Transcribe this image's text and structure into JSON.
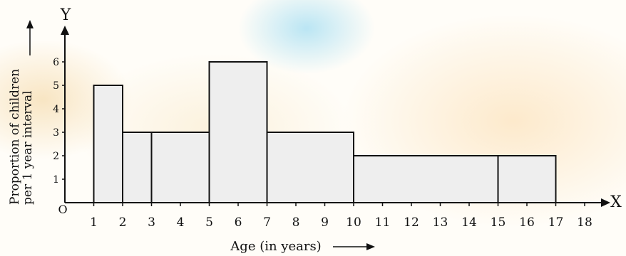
{
  "chart_data": {
    "type": "bar",
    "title": "",
    "xlabel": "Age (in years)",
    "ylabel_line1": "Proportion of children",
    "ylabel_line2": "per 1 year interval",
    "x_axis_letter": "X",
    "y_axis_letter": "Y",
    "origin_label": "O",
    "xlim": [
      0,
      18
    ],
    "ylim": [
      0,
      6
    ],
    "x_ticks": [
      1,
      2,
      3,
      4,
      5,
      6,
      7,
      8,
      9,
      10,
      11,
      12,
      13,
      14,
      15,
      16,
      17,
      18
    ],
    "y_ticks": [
      1,
      2,
      3,
      4,
      5,
      6
    ],
    "bins": [
      {
        "from": 1,
        "to": 2,
        "value": 5
      },
      {
        "from": 2,
        "to": 3,
        "value": 3
      },
      {
        "from": 3,
        "to": 5,
        "value": 3
      },
      {
        "from": 5,
        "to": 7,
        "value": 6
      },
      {
        "from": 7,
        "to": 10,
        "value": 3
      },
      {
        "from": 10,
        "to": 15,
        "value": 2
      },
      {
        "from": 15,
        "to": 17,
        "value": 2
      }
    ],
    "bar_fill": "#eeeeee",
    "bar_stroke": "#111111"
  }
}
